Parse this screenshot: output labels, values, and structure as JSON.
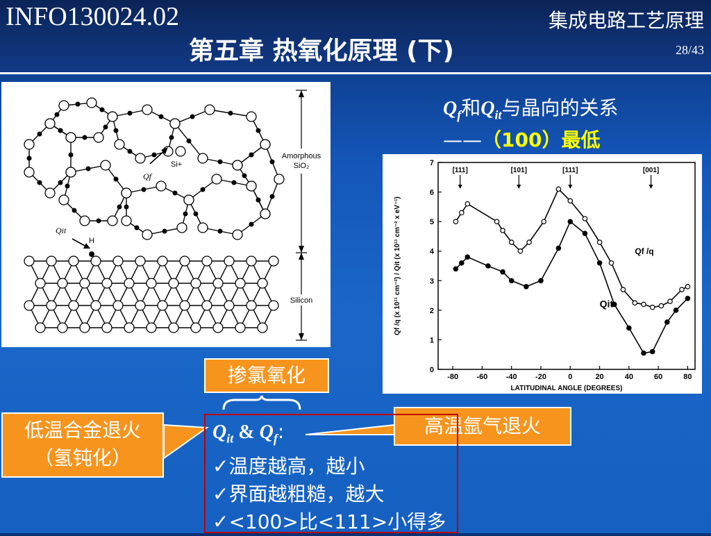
{
  "header": {
    "course_code": "INFO130024.02",
    "subject": "集成电路工艺原理",
    "title": "第五章  热氧化原理 (下)",
    "page": "28/43"
  },
  "left_figure": {
    "label_amorphous_1": "Amorphous",
    "label_amorphous_2": "SiO₂",
    "label_silicon": "Silicon",
    "label_qf": "Qf",
    "label_si": "Si+",
    "label_qit": "Qit",
    "label_h": "H"
  },
  "note": {
    "q1": "Q",
    "q1_sub": "f",
    "and": "和",
    "q2": "Q",
    "q2_sub": "it",
    "rest": "与晶向的关系",
    "dash": "——",
    "highlight": "（100）最低"
  },
  "chart_data": {
    "type": "line",
    "xlabel": "LATITUDINAL ANGLE (DEGREES)",
    "ylabel": "Qf /q (x 10¹¹ cm⁻²) / Qit (x 10¹¹ cm⁻² x eV⁻¹)",
    "xlim": [
      -90,
      85
    ],
    "ylim": [
      0,
      7
    ],
    "x_ticks": [
      "-80",
      "-60",
      "-40",
      "-20",
      "0",
      "20",
      "40",
      "60",
      "80"
    ],
    "y_ticks": [
      "0",
      "1",
      "2",
      "3",
      "4",
      "5",
      "6",
      "7"
    ],
    "orientation_labels": [
      {
        "text": "[111]",
        "x": -75
      },
      {
        "text": "[101]",
        "x": -35
      },
      {
        "text": "[111]",
        "x": 0
      },
      {
        "text": "[001]",
        "x": 55
      }
    ],
    "series": [
      {
        "name": "Qf /q",
        "marker": "open",
        "points": [
          [
            -78,
            5.0
          ],
          [
            -74,
            5.3
          ],
          [
            -70,
            5.6
          ],
          [
            -50,
            5.0
          ],
          [
            -46,
            4.7
          ],
          [
            -40,
            4.3
          ],
          [
            -34,
            4.0
          ],
          [
            -28,
            4.3
          ],
          [
            -18,
            5.0
          ],
          [
            -8,
            6.1
          ],
          [
            0,
            5.7
          ],
          [
            10,
            5.1
          ],
          [
            20,
            4.3
          ],
          [
            28,
            3.6
          ],
          [
            36,
            2.7
          ],
          [
            44,
            2.25
          ],
          [
            50,
            2.2
          ],
          [
            56,
            2.1
          ],
          [
            62,
            2.15
          ],
          [
            68,
            2.3
          ],
          [
            76,
            2.7
          ],
          [
            80,
            2.8
          ]
        ]
      },
      {
        "name": "Qit",
        "marker": "filled",
        "points": [
          [
            -78,
            3.4
          ],
          [
            -74,
            3.6
          ],
          [
            -70,
            3.8
          ],
          [
            -56,
            3.5
          ],
          [
            -46,
            3.3
          ],
          [
            -40,
            3.0
          ],
          [
            -30,
            2.8
          ],
          [
            -20,
            3.0
          ],
          [
            -8,
            4.1
          ],
          [
            0,
            5.0
          ],
          [
            10,
            4.6
          ],
          [
            20,
            3.6
          ],
          [
            30,
            2.2
          ],
          [
            40,
            1.4
          ],
          [
            50,
            0.55
          ],
          [
            56,
            0.6
          ],
          [
            66,
            1.6
          ],
          [
            72,
            2.0
          ],
          [
            80,
            2.4
          ]
        ]
      }
    ]
  },
  "callouts": {
    "hcl": "掺氯氧化",
    "low_temp_1": "低温合金退火",
    "low_temp_2": "（氢钝化）",
    "high_temp": "高温氩气退火"
  },
  "summary": {
    "head_q1": "Q",
    "head_q1_sub": "it",
    "head_amp": " & ",
    "head_q2": "Q",
    "head_q2_sub": "f",
    "head_colon": ":",
    "items": [
      "温度越高，越小",
      "界面越粗糙，越大",
      "<100>比<111>小得多"
    ]
  }
}
